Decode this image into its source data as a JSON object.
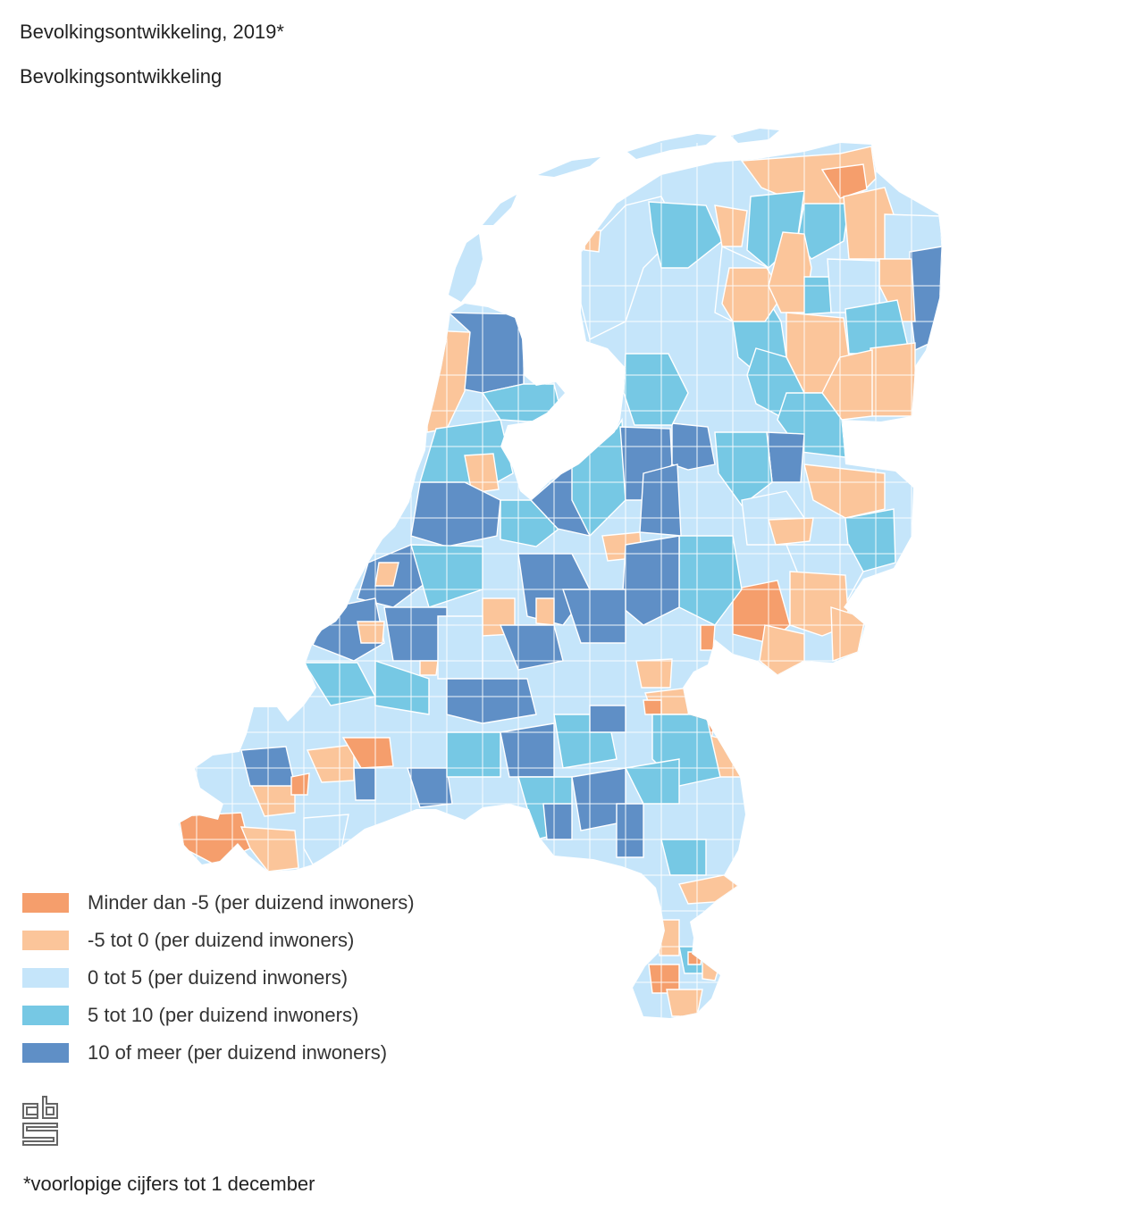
{
  "title": "Bevolkingsontwikkeling, 2019*",
  "subtitle": "Bevolkingsontwikkeling",
  "legend": {
    "items": [
      {
        "label": "Minder dan -5 (per duizend inwoners)",
        "color": "#f59e6c"
      },
      {
        "label": "-5 tot 0 (per duizend inwoners)",
        "color": "#fbc59a"
      },
      {
        "label": "0 tot 5 (per duizend inwoners)",
        "color": "#c5e5fa"
      },
      {
        "label": "5 tot 10 (per duizend inwoners)",
        "color": "#76c8e4"
      },
      {
        "label": "10 of meer (per duizend inwoners)",
        "color": "#5f8fc6"
      }
    ]
  },
  "map": {
    "region": "Nederland",
    "classes": [
      "class-1",
      "class-2",
      "class-3",
      "class-4",
      "class-5"
    ]
  },
  "logo": {
    "icon": "cbs-logo-icon"
  },
  "footnote": "*voorlopige cijfers tot 1 december"
}
